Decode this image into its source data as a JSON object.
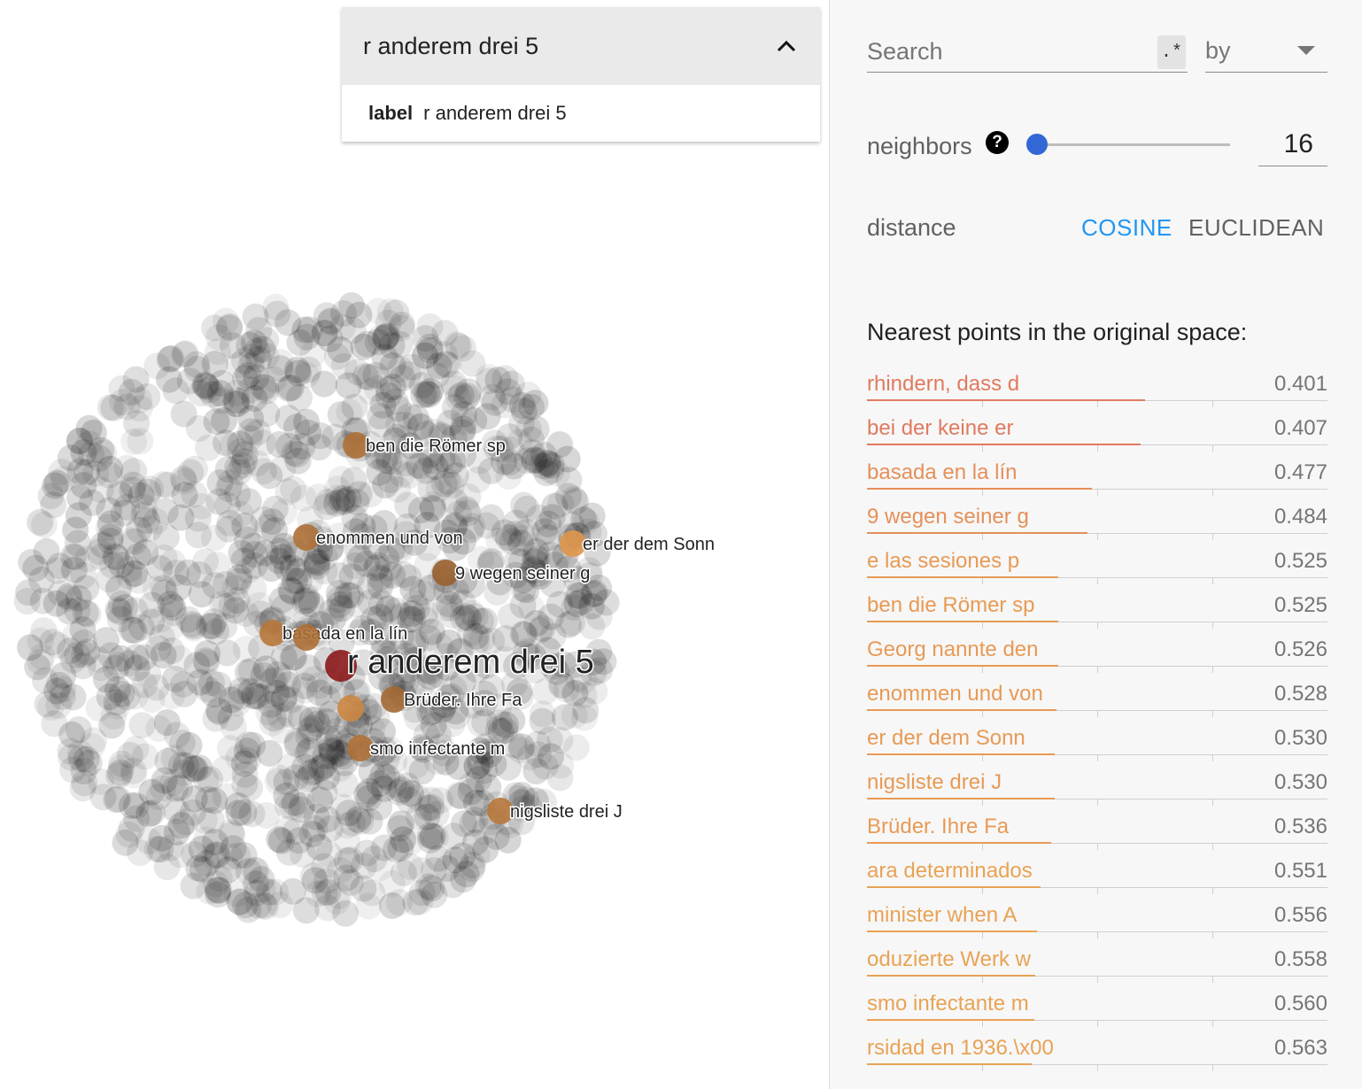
{
  "selected_point": {
    "title": "r anderem drei 5",
    "meta_key": "label",
    "meta_value": "r anderem drei 5"
  },
  "scatter": {
    "selected_label": "r anderem drei 5",
    "neighbor_labels": [
      "ben die Römer sp",
      "enommen und von",
      "er der dem Sonn",
      "9 wegen seiner g",
      "basada en la lín",
      "Brüder. Ihre Fa",
      "smo infectante m",
      "nigsliste drei J"
    ],
    "colors": {
      "selected": "#8b1a1a",
      "neighbor_near": "#7a4a22",
      "neighbor_far": "#e0954a",
      "cloud": "#000000"
    }
  },
  "search": {
    "placeholder": "Search",
    "regex_label": ".*",
    "by_label": "by"
  },
  "neighbors": {
    "label": "neighbors",
    "help_icon": "?",
    "value": "16",
    "slider_fraction": 0.0
  },
  "distance": {
    "label": "distance",
    "options": [
      "COSINE",
      "EUCLIDEAN"
    ],
    "active": "COSINE",
    "active_color": "#2196f3"
  },
  "nearest": {
    "title": "Nearest points in the original space:",
    "max_scale": 0.8,
    "items": [
      {
        "label": "rhindern, dass d",
        "value": "0.401",
        "color": "#e07a5f"
      },
      {
        "label": "bei der keine er",
        "value": "0.407",
        "color": "#e07a5f"
      },
      {
        "label": "basada en la lín",
        "value": "0.477",
        "color": "#e5905a"
      },
      {
        "label": "9 wegen seiner g",
        "value": "0.484",
        "color": "#e5905a"
      },
      {
        "label": "e las sesiones p",
        "value": "0.525",
        "color": "#e89a55"
      },
      {
        "label": "ben die Römer sp",
        "value": "0.525",
        "color": "#e89a55"
      },
      {
        "label": "Georg nannte den",
        "value": "0.526",
        "color": "#e89a55"
      },
      {
        "label": "enommen und von",
        "value": "0.528",
        "color": "#e89a55"
      },
      {
        "label": "er der dem Sonn",
        "value": "0.530",
        "color": "#e89a55"
      },
      {
        "label": "nigsliste drei J",
        "value": "0.530",
        "color": "#e89a55"
      },
      {
        "label": "Brüder. Ihre Fa",
        "value": "0.536",
        "color": "#e89a55"
      },
      {
        "label": "ara determinados",
        "value": "0.551",
        "color": "#e8a355"
      },
      {
        "label": "minister when A",
        "value": "0.556",
        "color": "#e8a355"
      },
      {
        "label": "oduzierte Werk w",
        "value": "0.558",
        "color": "#e8a355"
      },
      {
        "label": "smo infectante m",
        "value": "0.560",
        "color": "#e8a355"
      },
      {
        "label": "rsidad en 1936.\\x00",
        "value": "0.563",
        "color": "#e8a355"
      }
    ]
  }
}
